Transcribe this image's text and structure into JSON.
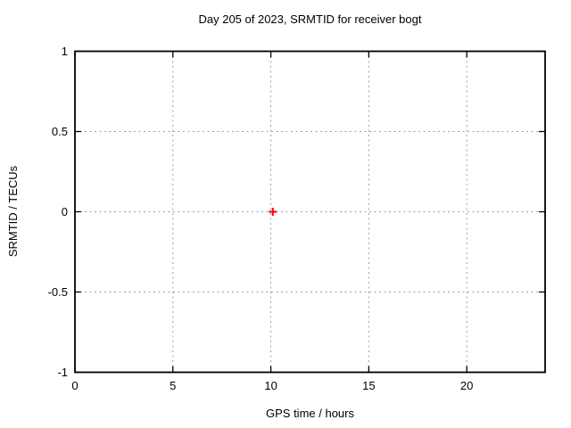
{
  "chart_data": {
    "type": "scatter",
    "title": "Day 205 of 2023, SRMTID for receiver bogt",
    "xlabel": "GPS time / hours",
    "ylabel": "SRMTID / TECUs",
    "xlim": [
      0,
      24
    ],
    "ylim": [
      -1,
      1
    ],
    "xticks": [
      0,
      5,
      10,
      15,
      20
    ],
    "xtick_labels": [
      "0",
      "5",
      "10",
      "15",
      "20"
    ],
    "yticks": [
      -1,
      -0.5,
      0,
      0.5,
      1
    ],
    "ytick_labels": [
      "-1",
      "-0.5",
      "0",
      "0.5",
      "1"
    ],
    "grid": true,
    "grid_style": "dashed",
    "legend_position": "none",
    "series": [
      {
        "name": "SRMTID",
        "marker": "plus",
        "color": "#ff0000",
        "points": [
          {
            "x": 10.1,
            "y": 0.0
          }
        ]
      }
    ]
  },
  "colors": {
    "background": "#ffffff",
    "border": "#000000",
    "grid": "#a0a0a0",
    "text": "#000000",
    "marker": "#ff0000"
  }
}
